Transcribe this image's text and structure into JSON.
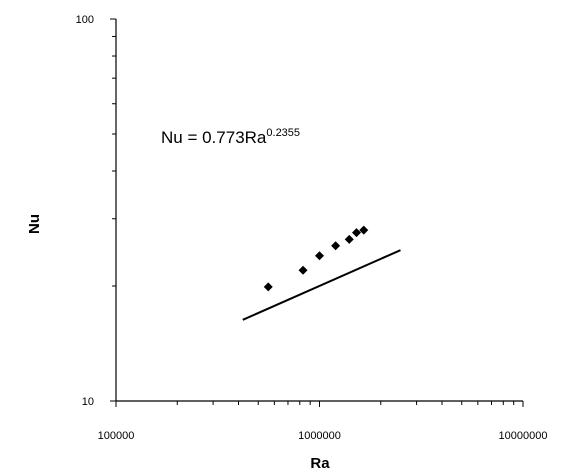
{
  "chart_data": {
    "type": "scatter",
    "title": "",
    "xlabel": "Ra",
    "ylabel": "Nu",
    "xscale": "log",
    "yscale": "log",
    "xlim": [
      100000,
      10000000
    ],
    "ylim": [
      10,
      100
    ],
    "xticks": [
      "100000",
      "1000000",
      "10000000"
    ],
    "yticks": [
      "10",
      "100"
    ],
    "grid": false,
    "legend": "none",
    "series": [
      {
        "marker": "diamond",
        "color": "#000000",
        "points": [
          {
            "x": 560000,
            "y": 19.9
          },
          {
            "x": 830000,
            "y": 22.0
          },
          {
            "x": 1000000,
            "y": 24.0
          },
          {
            "x": 1200000,
            "y": 25.5
          },
          {
            "x": 1400000,
            "y": 26.5
          },
          {
            "x": 1520000,
            "y": 27.6
          },
          {
            "x": 1650000,
            "y": 28.0
          }
        ]
      }
    ],
    "trendline": {
      "coefficient": 0.773,
      "exponent": 0.2355,
      "x_range": [
        420000,
        2500000
      ],
      "color": "#000000"
    },
    "annotation": {
      "prefix": "Nu = 0.773Ra",
      "superscript": "0.2355"
    }
  }
}
